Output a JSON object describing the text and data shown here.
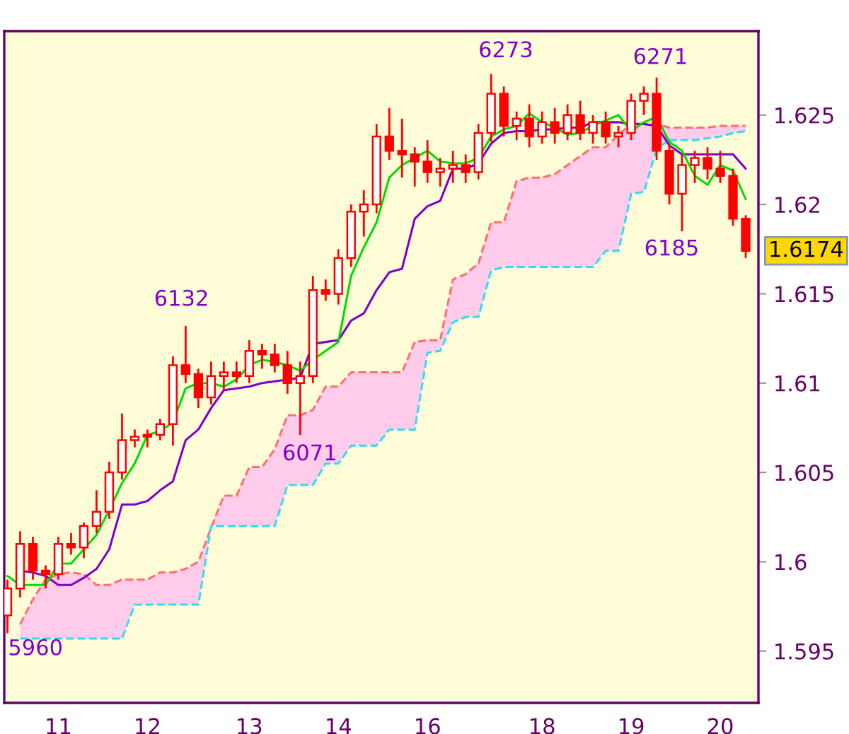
{
  "chart_data": {
    "type": "candlestick",
    "color": "#ff0000",
    "ylim": [
      1.5921,
      1.6297
    ],
    "yticks": [
      1.595,
      1.6,
      1.605,
      1.61,
      1.615,
      1.62,
      1.625
    ],
    "categories": [
      null,
      null,
      null,
      null,
      "11",
      null,
      null,
      null,
      null,
      null,
      null,
      "12",
      null,
      null,
      null,
      null,
      null,
      null,
      null,
      "13",
      null,
      null,
      null,
      null,
      null,
      null,
      "14",
      null,
      null,
      null,
      null,
      null,
      null,
      "16",
      null,
      null,
      null,
      null,
      null,
      null,
      null,
      null,
      "18",
      null,
      null,
      null,
      null,
      null,
      null,
      "19",
      null,
      null,
      null,
      null,
      null,
      null,
      "20",
      null,
      null
    ],
    "ohlc": [
      [
        1.597,
        1.599,
        1.596,
        1.5985
      ],
      [
        1.5985,
        1.6017,
        1.598,
        1.601
      ],
      [
        1.601,
        1.6014,
        1.599,
        1.5995
      ],
      [
        1.5995,
        1.5998,
        1.5985,
        1.5993
      ],
      [
        1.5993,
        1.6014,
        1.599,
        1.601
      ],
      [
        1.601,
        1.6016,
        1.6004,
        1.6008
      ],
      [
        1.6008,
        1.6022,
        1.6002,
        1.602
      ],
      [
        1.602,
        1.604,
        1.6016,
        1.6028
      ],
      [
        1.6028,
        1.6056,
        1.6024,
        1.605
      ],
      [
        1.605,
        1.6083,
        1.6046,
        1.6068
      ],
      [
        1.6068,
        1.6074,
        1.6064,
        1.607
      ],
      [
        1.607,
        1.6074,
        1.6064,
        1.6071
      ],
      [
        1.6071,
        1.608,
        1.6068,
        1.6077
      ],
      [
        1.6077,
        1.6115,
        1.6065,
        1.611
      ],
      [
        1.611,
        1.6132,
        1.61,
        1.6105
      ],
      [
        1.6105,
        1.6108,
        1.6086,
        1.6092
      ],
      [
        1.6092,
        1.6112,
        1.6088,
        1.6104
      ],
      [
        1.6104,
        1.6112,
        1.6096,
        1.6106
      ],
      [
        1.6106,
        1.6112,
        1.61,
        1.6104
      ],
      [
        1.6104,
        1.6124,
        1.61,
        1.6118
      ],
      [
        1.6118,
        1.6122,
        1.6108,
        1.6116
      ],
      [
        1.6116,
        1.6122,
        1.6106,
        1.611
      ],
      [
        1.611,
        1.6118,
        1.6094,
        1.61
      ],
      [
        1.61,
        1.6112,
        1.6071,
        1.6104
      ],
      [
        1.6104,
        1.616,
        1.61,
        1.6152
      ],
      [
        1.6152,
        1.6158,
        1.6146,
        1.615
      ],
      [
        1.615,
        1.6175,
        1.6144,
        1.617
      ],
      [
        1.617,
        1.62,
        1.6165,
        1.6196
      ],
      [
        1.6196,
        1.6208,
        1.6182,
        1.62
      ],
      [
        1.62,
        1.6245,
        1.6195,
        1.6238
      ],
      [
        1.6238,
        1.6254,
        1.6225,
        1.623
      ],
      [
        1.623,
        1.6248,
        1.6215,
        1.6228
      ],
      [
        1.6228,
        1.6232,
        1.621,
        1.6224
      ],
      [
        1.6224,
        1.6236,
        1.6212,
        1.6218
      ],
      [
        1.6218,
        1.6226,
        1.621,
        1.622
      ],
      [
        1.622,
        1.623,
        1.6212,
        1.6222
      ],
      [
        1.6222,
        1.6228,
        1.6212,
        1.6218
      ],
      [
        1.6218,
        1.6245,
        1.6214,
        1.624
      ],
      [
        1.624,
        1.6273,
        1.6235,
        1.6262
      ],
      [
        1.6262,
        1.6266,
        1.6238,
        1.6244
      ],
      [
        1.6244,
        1.6252,
        1.6236,
        1.6248
      ],
      [
        1.6248,
        1.6256,
        1.6232,
        1.6238
      ],
      [
        1.6238,
        1.6252,
        1.6234,
        1.6246
      ],
      [
        1.6246,
        1.6254,
        1.6234,
        1.624
      ],
      [
        1.624,
        1.6256,
        1.6236,
        1.625
      ],
      [
        1.625,
        1.6258,
        1.6236,
        1.624
      ],
      [
        1.624,
        1.625,
        1.6234,
        1.6246
      ],
      [
        1.6246,
        1.6252,
        1.6234,
        1.6238
      ],
      [
        1.6238,
        1.6244,
        1.6232,
        1.624
      ],
      [
        1.624,
        1.6262,
        1.6236,
        1.6258
      ],
      [
        1.6258,
        1.6266,
        1.625,
        1.6262
      ],
      [
        1.6262,
        1.6271,
        1.6225,
        1.623
      ],
      [
        1.623,
        1.6234,
        1.62,
        1.6206
      ],
      [
        1.6206,
        1.6228,
        1.6185,
        1.6222
      ],
      [
        1.6222,
        1.623,
        1.6212,
        1.6226
      ],
      [
        1.6226,
        1.6232,
        1.6214,
        1.622
      ],
      [
        1.622,
        1.623,
        1.6212,
        1.6216
      ],
      [
        1.6216,
        1.622,
        1.6188,
        1.6192
      ],
      [
        1.6192,
        1.6194,
        1.617,
        1.6174
      ]
    ],
    "series": [
      {
        "type": "line",
        "color": "#ff6f6f",
        "line_style": "dashed",
        "upper": [
          null,
          1.5965,
          1.5979,
          1.599,
          1.5993,
          1.5994,
          1.5993,
          1.5987,
          1.5987,
          1.599,
          1.599,
          1.599,
          1.5994,
          1.5994,
          1.5996,
          1.6,
          1.6019,
          1.6037,
          1.6037,
          1.6053,
          1.6053,
          1.6063,
          1.6082,
          1.6082,
          1.6085,
          1.6098,
          1.6098,
          1.6106,
          1.6106,
          1.6106,
          1.6106,
          1.6106,
          1.6123,
          1.6124,
          1.6124,
          1.6158,
          1.6161,
          1.6167,
          1.619,
          1.619,
          1.6213,
          1.6215,
          1.6215,
          1.6217,
          1.6222,
          1.6227,
          1.6232,
          1.6232,
          1.6239,
          1.6245,
          1.6245,
          1.6245,
          1.6243,
          1.6243,
          1.6243,
          1.6243,
          1.6244,
          1.6244,
          1.6244
        ],
        "values": [
          null,
          1.5965,
          1.5979,
          1.599,
          1.5993,
          1.5994,
          1.5993,
          1.5987,
          1.5987,
          1.599,
          1.599,
          1.599,
          1.5994,
          1.5994,
          1.5996,
          1.6,
          1.6019,
          1.6037,
          1.6037,
          1.6053,
          1.6053,
          1.6063,
          1.6082,
          1.6082,
          1.6085,
          1.6098,
          1.6098,
          1.6106,
          1.6106,
          1.6106,
          1.6106,
          1.6106,
          1.6123,
          1.6124,
          1.6124,
          1.6158,
          1.6161,
          1.6167,
          1.619,
          1.619,
          1.6213,
          1.6215,
          1.6215,
          1.6217,
          1.6222,
          1.6227,
          1.6232,
          1.6232,
          1.6239,
          1.6245,
          1.6245,
          1.6245,
          1.6243,
          1.6243,
          1.6243,
          1.6243,
          1.6244,
          1.6244,
          1.6244
        ],
        "lower": [
          null,
          1.5957,
          1.5957,
          1.5957,
          1.5957,
          1.5957,
          1.5957,
          1.5957,
          1.5957,
          1.5957,
          1.5976,
          1.5976,
          1.5976,
          1.5976,
          1.5976,
          1.5976,
          1.602,
          1.602,
          1.602,
          1.602,
          1.602,
          1.602,
          1.6043,
          1.6043,
          1.6043,
          1.6055,
          1.6055,
          1.6065,
          1.6065,
          1.6065,
          1.6074,
          1.6074,
          1.6074,
          1.6117,
          1.6118,
          1.6134,
          1.6137,
          1.6137,
          1.6163,
          1.6165,
          1.6165,
          1.6165,
          1.6165,
          1.6165,
          1.6165,
          1.6165,
          1.6165,
          1.6174,
          1.6174,
          1.6206,
          1.6207,
          1.6231,
          1.6236,
          1.6236,
          1.6236,
          1.6237,
          1.6238,
          1.624,
          1.6241
        ]
      },
      {
        "type": "line",
        "color": "#33ddee",
        "line_style": "dashed",
        "values": [
          null,
          1.5957,
          1.5957,
          1.5957,
          1.5957,
          1.5957,
          1.5957,
          1.5957,
          1.5957,
          1.5957,
          1.5976,
          1.5976,
          1.5976,
          1.5976,
          1.5976,
          1.5976,
          1.602,
          1.602,
          1.602,
          1.602,
          1.602,
          1.602,
          1.6043,
          1.6043,
          1.6043,
          1.6055,
          1.6055,
          1.6065,
          1.6065,
          1.6065,
          1.6074,
          1.6074,
          1.6074,
          1.6117,
          1.6118,
          1.6134,
          1.6137,
          1.6137,
          1.6163,
          1.6165,
          1.6165,
          1.6165,
          1.6165,
          1.6165,
          1.6165,
          1.6165,
          1.6165,
          1.6174,
          1.6174,
          1.6206,
          1.6207,
          1.6231,
          1.6236,
          1.6236,
          1.6236,
          1.6237,
          1.6238,
          1.624,
          1.6241
        ]
      },
      {
        "type": "line",
        "color": "#8000c8",
        "values": [
          null,
          1.5995,
          1.5994,
          1.5992,
          1.5987,
          1.5987,
          1.5991,
          1.5996,
          1.6007,
          1.6032,
          1.6032,
          1.6034,
          1.604,
          1.6045,
          1.6068,
          1.6074,
          1.6086,
          1.6096,
          1.6097,
          1.6098,
          1.61,
          1.6101,
          1.6102,
          1.6103,
          1.6122,
          1.6123,
          1.6124,
          1.6135,
          1.6139,
          1.6152,
          1.6162,
          1.6164,
          1.6192,
          1.6199,
          1.6202,
          1.622,
          1.622,
          1.6223,
          1.6234,
          1.624,
          1.6241,
          1.6241,
          1.6242,
          1.6242,
          1.6243,
          1.6243,
          1.6246,
          1.6246,
          1.6246,
          1.6245,
          1.6245,
          1.6244,
          1.6233,
          1.6228,
          1.6228,
          1.6228,
          1.6228,
          1.6228,
          1.622
        ]
      },
      {
        "type": "line",
        "color": "#00dd00",
        "values": [
          1.5992,
          1.5987,
          1.5987,
          1.5987,
          1.5999,
          1.5999,
          1.6007,
          1.6015,
          1.6029,
          1.6044,
          1.6055,
          1.6071,
          1.6073,
          1.6078,
          1.6097,
          1.61,
          1.61,
          1.6098,
          1.6102,
          1.611,
          1.6113,
          1.6112,
          1.611,
          1.6107,
          1.6113,
          1.6118,
          1.6123,
          1.616,
          1.6176,
          1.619,
          1.6215,
          1.6222,
          1.6226,
          1.623,
          1.6224,
          1.6223,
          1.6223,
          1.6226,
          1.6238,
          1.6242,
          1.6244,
          1.6251,
          1.6246,
          1.6243,
          1.6239,
          1.624,
          1.6244,
          1.6247,
          1.625,
          1.6241,
          1.6246,
          1.6249,
          1.6235,
          1.623,
          1.6216,
          1.6211,
          1.6222,
          1.6219,
          1.6203
        ]
      }
    ],
    "annotations": [
      "5960",
      "6132",
      "6071",
      "6273",
      "6271",
      "6185",
      "1.6174"
    ]
  }
}
